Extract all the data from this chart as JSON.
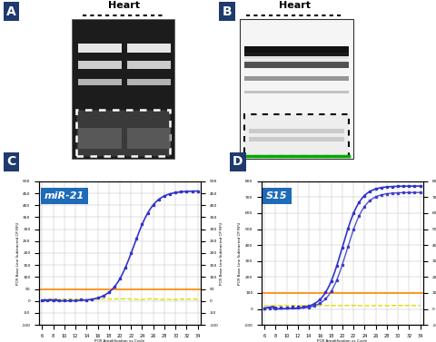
{
  "panel_A": {
    "label": "A",
    "gel_title": "Heart",
    "title_dotted": true
  },
  "panel_B": {
    "label": "B",
    "gel_title": "Heart",
    "title_dotted": true
  },
  "panel_C": {
    "label": "C",
    "gene_label": "miR-21",
    "ylim": [
      -100,
      500
    ],
    "ylabel": "PCR Base Line Subtracted CP RFU",
    "xlabel_small": "PCR Amplification vs Cycle",
    "orange_line_y": 50,
    "yellow_line_y": 0,
    "x_ticks": [
      6,
      8,
      10,
      12,
      14,
      16,
      18,
      20,
      22,
      24,
      26,
      28,
      30,
      32,
      34
    ],
    "y_ticks": [
      -100,
      -50,
      0,
      50,
      100,
      150,
      200,
      250,
      300,
      350,
      400,
      450,
      500
    ],
    "sigmoid_midpoint": 22.5,
    "sigmoid_steepness": 0.55,
    "sigmoid_plateau": 460,
    "blue_color": "#3333cc",
    "orange_color": "#ff8800",
    "yellow_color": "#dddd00",
    "label_bg_color": "#1e6bb8"
  },
  "panel_D": {
    "label": "D",
    "gene_label": "S15",
    "ylim": [
      -100,
      800
    ],
    "ylabel": "PCR Base Line Subtracted CP RFU",
    "xlabel_small": "PCR Amplification vs Cycle",
    "orange_line_y": 100,
    "yellow_line_y": 20,
    "x_ticks": [
      6,
      8,
      10,
      12,
      14,
      16,
      18,
      20,
      22,
      24,
      26,
      28,
      30,
      32,
      34
    ],
    "y_ticks": [
      -100,
      0,
      100,
      200,
      300,
      400,
      500,
      600,
      700,
      800
    ],
    "sigmoid_midpoint_hi": 20.0,
    "sigmoid_midpoint_lo": 20.8,
    "sigmoid_steepness": 0.62,
    "sigmoid_plateau_hi": 770,
    "sigmoid_plateau_lo": 730,
    "blue_color": "#3333cc",
    "orange_color": "#ff8800",
    "yellow_color": "#dddd00",
    "label_bg_color": "#1e6bb8"
  },
  "label_bg_color": "#1e3a6e",
  "label_text_color": "#ffffff",
  "figure_bg": "#ffffff"
}
